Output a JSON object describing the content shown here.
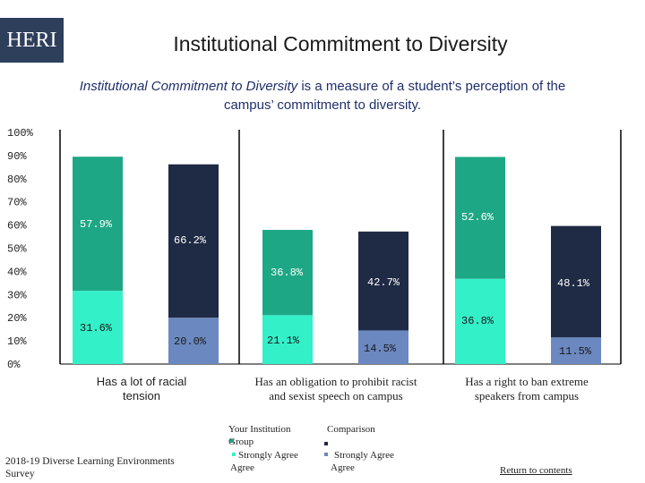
{
  "logo_text": "HERI",
  "title": "Institutional Commitment to Diversity",
  "subtitle": {
    "emphasis": "Institutional Commitment to Diversity",
    "rest": " is a measure of a student’s perception of the campus’ commitment to diversity."
  },
  "source": "2018-19 Diverse Learning Environments Survey",
  "return_link": "Return to contents",
  "legend": {
    "institution_label": "Your Institution Group",
    "comparison_label": "Comparison",
    "strongly_agree_a": "Strongly Agree",
    "strongly_agree_b": "Strongly Agree"
  },
  "colors": {
    "institution_agree": "#1ea785",
    "institution_strongly": "#33f0c8",
    "comparison_agree": "#1f2a44",
    "comparison_strongly": "#6b88c0",
    "logo_bg": "#2e3f5c"
  },
  "chart_data": {
    "type": "bar",
    "stacked": true,
    "y_ticks": [
      "100%",
      "90%",
      "80%",
      "70%",
      "60%",
      "50%",
      "40%",
      "30%",
      "20%",
      "10%",
      "0%"
    ],
    "ylim": [
      0,
      100
    ],
    "categories": [
      "Has a lot of racial tension",
      "Has an obligation to prohibit racist and sexist speech on campus",
      "Has a right to ban extreme speakers from campus"
    ],
    "groups": [
      {
        "institution": {
          "strongly": 31.6,
          "agree": 57.9,
          "strongly_label": "31.6%",
          "agree_label": "57.9%"
        },
        "comparison": {
          "strongly": 20.0,
          "agree": 66.2,
          "strongly_label": "20.0%",
          "agree_label": "66.2%"
        }
      },
      {
        "institution": {
          "strongly": 21.1,
          "agree": 36.8,
          "strongly_label": "21.1%",
          "agree_label": "36.8%"
        },
        "comparison": {
          "strongly": 14.5,
          "agree": 42.7,
          "strongly_label": "14.5%",
          "agree_label": "42.7%"
        }
      },
      {
        "institution": {
          "strongly": 36.8,
          "agree": 52.6,
          "strongly_label": "36.8%",
          "agree_label": "52.6%"
        },
        "comparison": {
          "strongly": 11.5,
          "agree": 48.1,
          "strongly_label": "11.5%",
          "agree_label": "48.1%"
        }
      }
    ]
  }
}
